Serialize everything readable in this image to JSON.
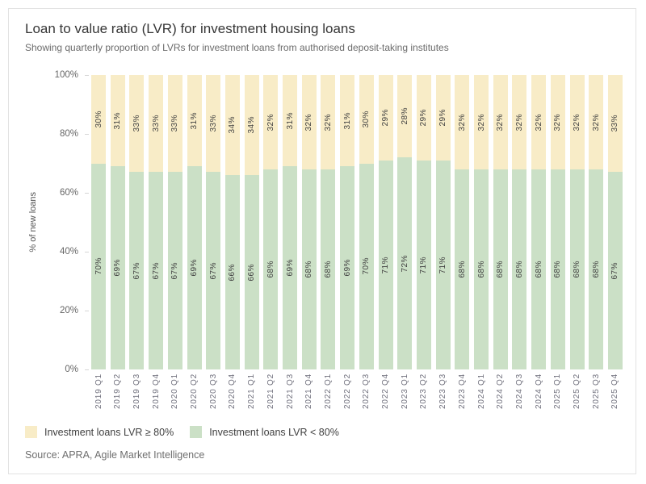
{
  "header": {
    "title": "Loan to value ratio (LVR) for investment housing loans",
    "subtitle": "Showing quarterly proportion of LVRs for investment loans from authorised deposit-taking institutes"
  },
  "chart_data": {
    "type": "bar",
    "stacked": true,
    "normalized": "100% stacked",
    "orientation": "vertical",
    "categories": [
      "2019 Q1",
      "2019 Q2",
      "2019 Q3",
      "2019 Q4",
      "2020 Q1",
      "2020 Q2",
      "2020 Q3",
      "2020 Q4",
      "2021 Q1",
      "2021 Q2",
      "2021 Q3",
      "2021 Q4",
      "2022 Q1",
      "2022 Q2",
      "2022 Q3",
      "2022 Q4",
      "2023 Q1",
      "2023 Q2",
      "2023 Q3",
      "2023 Q4",
      "2024 Q1",
      "2024 Q2",
      "2024 Q3",
      "2024 Q4",
      "2025 Q1",
      "2025 Q2",
      "2025 Q3",
      "2025 Q4"
    ],
    "series": [
      {
        "name": "Investment loans LVR ≥ 80%",
        "position": "top",
        "color": "#f8ecc7",
        "values": [
          30,
          31,
          33,
          33,
          33,
          31,
          33,
          34,
          34,
          32,
          31,
          32,
          32,
          31,
          30,
          29,
          28,
          29,
          29,
          32,
          32,
          32,
          32,
          32,
          32,
          32,
          32,
          33
        ]
      },
      {
        "name": "Investment loans LVR < 80%",
        "position": "bottom",
        "color": "#cbe0c6",
        "values": [
          70,
          69,
          67,
          67,
          67,
          69,
          67,
          66,
          66,
          68,
          69,
          68,
          68,
          69,
          70,
          71,
          72,
          71,
          71,
          68,
          68,
          68,
          68,
          68,
          68,
          68,
          68,
          67
        ]
      }
    ],
    "value_label_suffix": "%",
    "xlabel": "",
    "ylabel": "% of new loans",
    "y_ticks": [
      "0%",
      "20%",
      "40%",
      "60%",
      "80%",
      "100%"
    ],
    "ylim": [
      0,
      100
    ],
    "grid": false,
    "legend_position": "bottom-left"
  },
  "footer": {
    "source": "Source: APRA, Agile Market Intelligence"
  }
}
